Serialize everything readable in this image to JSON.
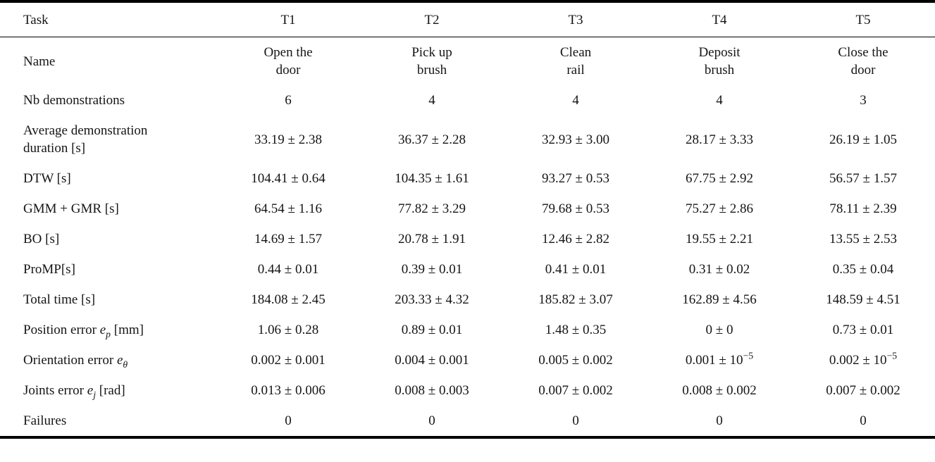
{
  "colors": {
    "background": "#ffffff",
    "text": "#151515",
    "rule": "#000000"
  },
  "table": {
    "columns": [
      "Task",
      "T1",
      "T2",
      "T3",
      "T4",
      "T5"
    ],
    "rows": [
      {
        "label": "Name",
        "values": [
          "Open the\ndoor",
          "Pick up\nbrush",
          "Clean\nrail",
          "Deposit\nbrush",
          "Close the\ndoor"
        ]
      },
      {
        "label": "Nb demonstrations",
        "values": [
          "6",
          "4",
          "4",
          "4",
          "3"
        ]
      },
      {
        "label": "Average demonstration\nduration [s]",
        "values": [
          "33.19 ± 2.38",
          "36.37 ± 2.28",
          "32.93 ± 3.00",
          "28.17 ± 3.33",
          "26.19 ± 1.05"
        ]
      },
      {
        "label": "DTW [s]",
        "values": [
          "104.41 ± 0.64",
          "104.35 ± 1.61",
          "93.27 ± 0.53",
          "67.75 ± 2.92",
          "56.57 ± 1.57"
        ]
      },
      {
        "label": "GMM + GMR [s]",
        "values": [
          "64.54 ± 1.16",
          "77.82 ± 3.29",
          "79.68 ± 0.53",
          "75.27 ± 2.86",
          "78.11 ± 2.39"
        ]
      },
      {
        "label": "BO [s]",
        "values": [
          "14.69 ± 1.57",
          "20.78 ± 1.91",
          "12.46 ± 2.82",
          "19.55 ± 2.21",
          "13.55 ± 2.53"
        ]
      },
      {
        "label": "ProMP[s]",
        "values": [
          "0.44 ± 0.01",
          "0.39 ± 0.01",
          "0.41 ± 0.01",
          "0.31 ± 0.02",
          "0.35 ± 0.04"
        ]
      },
      {
        "label": "Total time [s]",
        "values": [
          "184.08 ± 2.45",
          "203.33 ± 4.32",
          "185.82 ± 3.07",
          "162.89 ± 4.56",
          "148.59 ± 4.51"
        ]
      },
      {
        "label": "Position error *e_{p}* [mm]",
        "values": [
          "1.06 ± 0.28",
          "0.89 ± 0.01",
          "1.48 ± 0.35",
          "0 ± 0",
          "0.73 ± 0.01"
        ]
      },
      {
        "label": "Orientation error *e_{θ}*",
        "values": [
          "0.002 ± 0.001",
          "0.004 ± 0.001",
          "0.005 ± 0.002",
          "0.001 ± 10^{−5}",
          "0.002 ± 10^{−5}"
        ]
      },
      {
        "label": "Joints error *e_{j}* [rad]",
        "values": [
          "0.013 ± 0.006",
          "0.008 ± 0.003",
          "0.007 ± 0.002",
          "0.008 ± 0.002",
          "0.007 ± 0.002"
        ]
      },
      {
        "label": "Failures",
        "values": [
          "0",
          "0",
          "0",
          "0",
          "0"
        ]
      }
    ]
  }
}
